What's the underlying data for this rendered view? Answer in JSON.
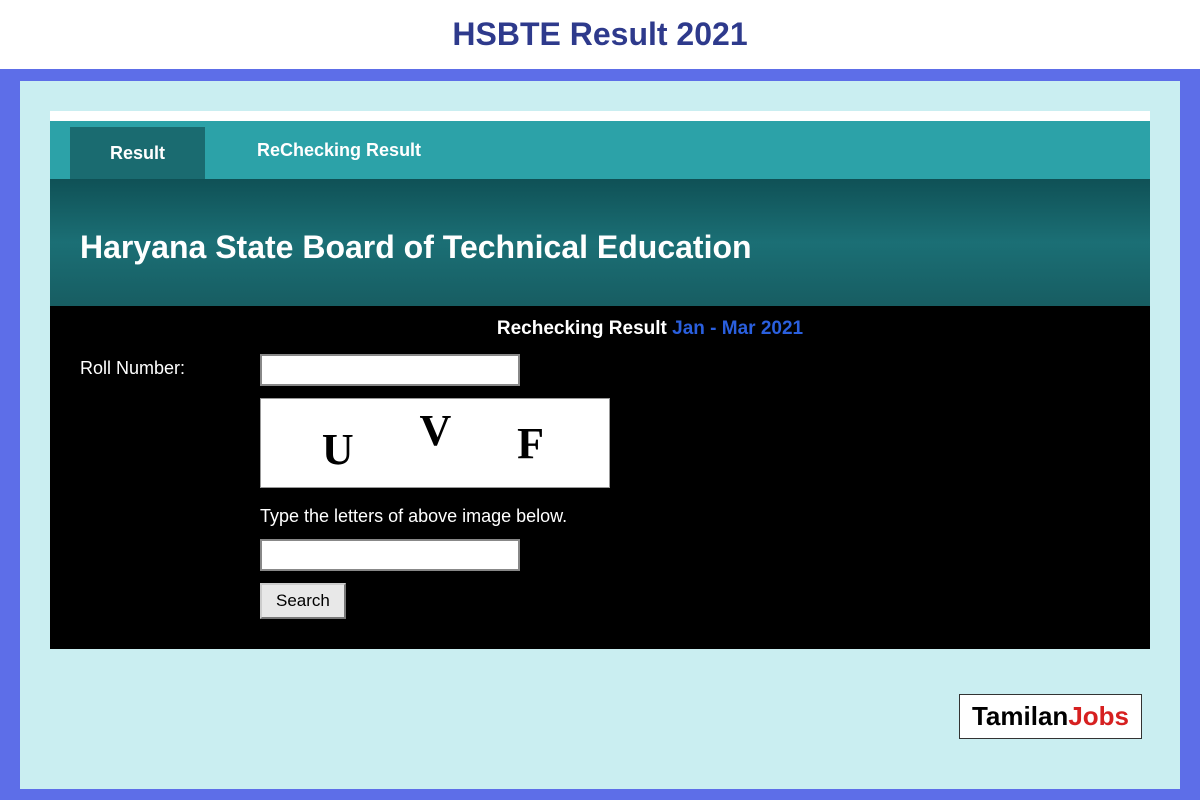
{
  "pageTitle": "HSBTE Result 2021",
  "tabs": {
    "result": "Result",
    "rechecking": "ReChecking Result"
  },
  "banner": {
    "title": "Haryana State Board of Technical Education"
  },
  "form": {
    "resultLabel": "Rechecking Result",
    "resultPeriod": "Jan - Mar 2021",
    "rollNumberLabel": "Roll Number:",
    "captchaChars": [
      "U",
      "V",
      "F"
    ],
    "captchaInstruction": "Type the letters of above image below.",
    "searchButton": "Search"
  },
  "watermark": {
    "part1": "Tamilan",
    "part2": "Jobs"
  },
  "colors": {
    "frameBorder": "#5d6ee8",
    "pageTitle": "#2e3a8c",
    "outerBg": "#caeef1",
    "tabBar": "#2ca2a8",
    "tabActive": "#1a6b70",
    "bannerBg": "#175d62",
    "formBg": "#000000",
    "periodLink": "#2a5fde"
  }
}
